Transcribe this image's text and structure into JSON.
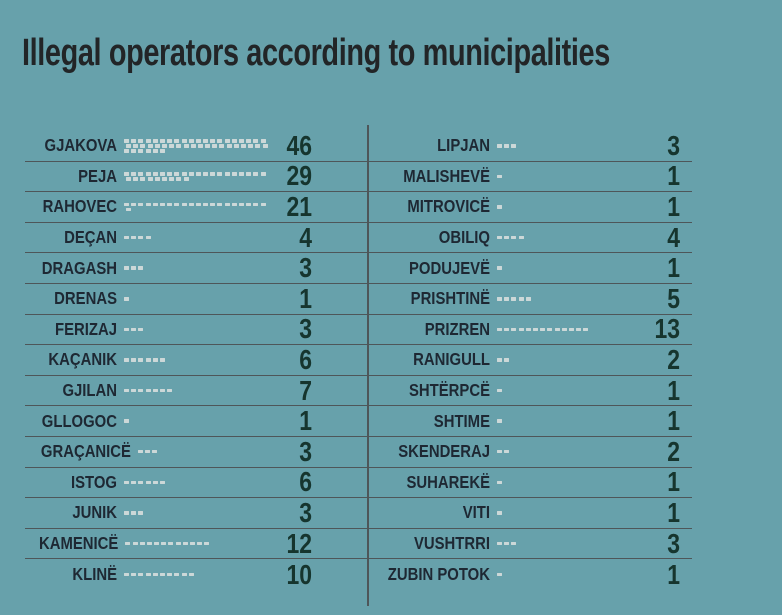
{
  "title": "Illegal operators according to municipalities",
  "colors": {
    "background": "#67a1ab",
    "title_text": "#222527",
    "label_text": "#1e2833",
    "number_text": "#16352e",
    "dash": "#ccd8d8",
    "rule_line": "#4e5659"
  },
  "chart_data": {
    "type": "bar",
    "subtype": "pictogram-dash-tally",
    "title": "Illegal operators according to municipalities",
    "unit_per_dash": 1,
    "max_dashes_per_line": 20,
    "legend": "none",
    "grid": "row-rules-only",
    "categories": [
      "GJAKOVA",
      "PEJA",
      "RAHOVEC",
      "DEÇAN",
      "DRAGASH",
      "DRENAS",
      "FERIZAJ",
      "KAÇANIK",
      "GJILAN",
      "GLLOGOC",
      "GRAÇANICË",
      "ISTOG",
      "JUNIK",
      "KAMENICË",
      "KLINË",
      "LIPJAN",
      "MALISHEVË",
      "MITROVICË",
      "OBILIQ",
      "PODUJEVË",
      "PRISHTINË",
      "PRIZREN",
      "RANIGULL",
      "SHTËRPCË",
      "SHTIME",
      "SKENDERAJ",
      "SUHAREKË",
      "VITI",
      "VUSHTRRI",
      "ZUBIN POTOK"
    ],
    "values": [
      46,
      29,
      21,
      4,
      3,
      1,
      3,
      6,
      7,
      1,
      3,
      6,
      3,
      12,
      10,
      3,
      1,
      1,
      4,
      1,
      5,
      13,
      2,
      1,
      1,
      2,
      1,
      1,
      3,
      1
    ],
    "columns": [
      {
        "side": "left",
        "rows": [
          {
            "name": "GJAKOVA",
            "value": 46
          },
          {
            "name": "PEJA",
            "value": 29
          },
          {
            "name": "RAHOVEC",
            "value": 21
          },
          {
            "name": "DEÇAN",
            "value": 4
          },
          {
            "name": "DRAGASH",
            "value": 3
          },
          {
            "name": "DRENAS",
            "value": 1
          },
          {
            "name": "FERIZAJ",
            "value": 3
          },
          {
            "name": "KAÇANIK",
            "value": 6
          },
          {
            "name": "GJILAN",
            "value": 7
          },
          {
            "name": "GLLOGOC",
            "value": 1
          },
          {
            "name": "GRAÇANICË",
            "value": 3
          },
          {
            "name": "ISTOG",
            "value": 6
          },
          {
            "name": "JUNIK",
            "value": 3
          },
          {
            "name": "KAMENICË",
            "value": 12
          },
          {
            "name": "KLINË",
            "value": 10
          }
        ]
      },
      {
        "side": "right",
        "rows": [
          {
            "name": "LIPJAN",
            "value": 3
          },
          {
            "name": "MALISHEVË",
            "value": 1
          },
          {
            "name": "MITROVICË",
            "value": 1
          },
          {
            "name": "OBILIQ",
            "value": 4
          },
          {
            "name": "PODUJEVË",
            "value": 1
          },
          {
            "name": "PRISHTINË",
            "value": 5
          },
          {
            "name": "PRIZREN",
            "value": 13
          },
          {
            "name": "RANIGULL",
            "value": 2
          },
          {
            "name": "SHTËRPCË",
            "value": 1
          },
          {
            "name": "SHTIME",
            "value": 1
          },
          {
            "name": "SKENDERAJ",
            "value": 2
          },
          {
            "name": "SUHAREKË",
            "value": 1
          },
          {
            "name": "VITI",
            "value": 1
          },
          {
            "name": "VUSHTRRI",
            "value": 3
          },
          {
            "name": "ZUBIN POTOK",
            "value": 1
          }
        ]
      }
    ]
  }
}
